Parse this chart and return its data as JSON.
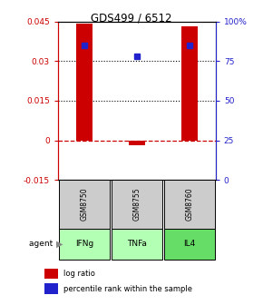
{
  "title": "GDS499 / 6512",
  "samples": [
    "GSM8750",
    "GSM8755",
    "GSM8760"
  ],
  "agents": [
    "IFNg",
    "TNFa",
    "IL4"
  ],
  "agent_colors": [
    "#b3ffb3",
    "#b3ffb3",
    "#66dd66"
  ],
  "log_ratios": [
    0.044,
    -0.002,
    0.043
  ],
  "percentile_ranks": [
    85,
    78,
    85
  ],
  "bar_color": "#cc0000",
  "dot_color": "#2222cc",
  "ylim_left": [
    -0.015,
    0.045
  ],
  "ylim_right": [
    0,
    100
  ],
  "yticks_left": [
    -0.015,
    0,
    0.015,
    0.03,
    0.045
  ],
  "ytick_labels_left": [
    "-0.015",
    "0",
    "0.015",
    "0.03",
    "0.045"
  ],
  "yticks_right": [
    0,
    25,
    50,
    75,
    100
  ],
  "ytick_labels_right": [
    "0",
    "25",
    "50",
    "75",
    "100%"
  ],
  "zero_line_pct": 25,
  "dotted_lines_pct": [
    50,
    75
  ],
  "left_axis_color": "#cc0000",
  "right_axis_color": "#2222cc",
  "legend_log_ratio": "log ratio",
  "legend_percentile": "percentile rank within the sample",
  "gsm_box_color": "#cccccc",
  "gsm_box_edge": "#888888"
}
